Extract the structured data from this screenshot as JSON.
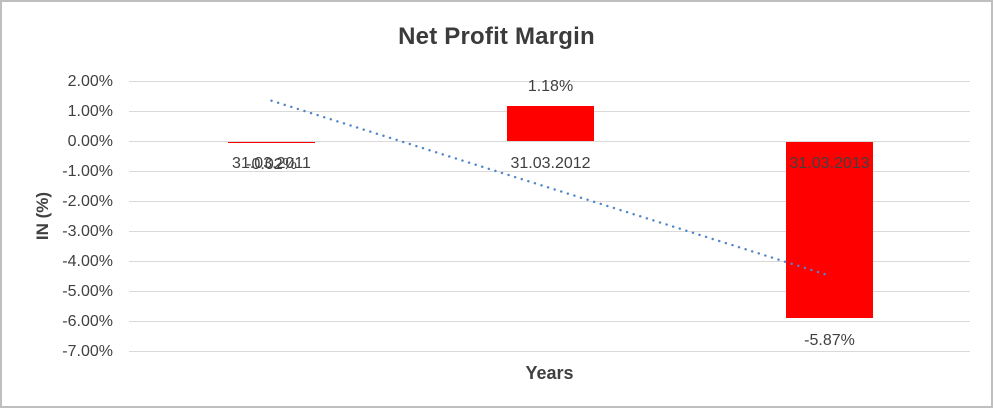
{
  "window": {
    "background": "#ffffff",
    "border_color": "#bfbfbf"
  },
  "chart_data": {
    "type": "bar",
    "title": "Net Profit Margin",
    "xlabel": "Years",
    "ylabel": "IN (%)",
    "categories": [
      "31.03.2011",
      "31.03.2012",
      "31.03.2013"
    ],
    "values": [
      -0.02,
      1.18,
      -5.87
    ],
    "data_labels": [
      "-0.02%",
      "1.18%",
      "-5.87%"
    ],
    "yticks": [
      "2.00%",
      "1.00%",
      "0.00%",
      "-1.00%",
      "-2.00%",
      "-3.00%",
      "-4.00%",
      "-5.00%",
      "-6.00%",
      "-7.00%"
    ],
    "ytick_values": [
      2,
      1,
      0,
      -1,
      -2,
      -3,
      -4,
      -5,
      -6,
      -7
    ],
    "ylim": [
      -7,
      2
    ],
    "grid": true,
    "legend": false,
    "bar_color": "#ff0000",
    "gridline_color": "#d9d9d9",
    "text_color": "#404040",
    "trendline": {
      "style": "dotted",
      "color": "#4e86c8",
      "start_value": 1.36,
      "end_value": -4.47
    }
  }
}
